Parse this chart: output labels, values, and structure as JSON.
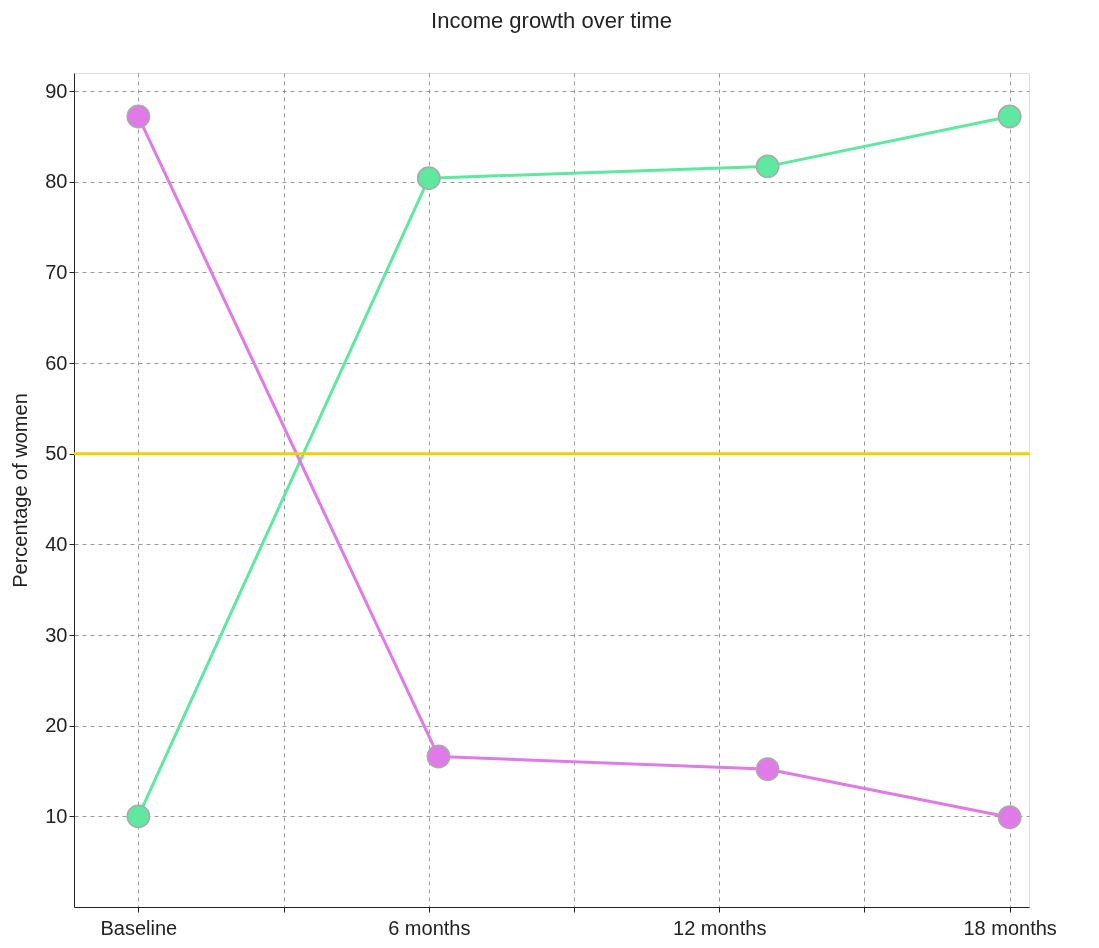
{
  "chart_data": {
    "type": "line",
    "title": "Income growth over time",
    "ylabel": "Percentage of women",
    "xlim": [
      -1.33,
      18.4
    ],
    "ylim": [
      0,
      92
    ],
    "xticks": [
      {
        "value": 0,
        "label": "Baseline"
      },
      {
        "value": 3,
        "label": null
      },
      {
        "value": 6,
        "label": "6 months"
      },
      {
        "value": 9,
        "label": null
      },
      {
        "value": 12,
        "label": "12 months"
      },
      {
        "value": 15,
        "label": null
      },
      {
        "value": 18,
        "label": "18 months"
      }
    ],
    "yticks": [
      10,
      20,
      30,
      40,
      50,
      60,
      70,
      80,
      90
    ],
    "series": [
      {
        "color": "#5ee8a0",
        "x": [
          0,
          6,
          13,
          18
        ],
        "values": [
          10,
          80.4,
          81.7,
          87.2
        ]
      },
      {
        "color": "#e07ae8",
        "x": [
          0,
          6.2,
          13,
          18
        ],
        "values": [
          87.2,
          16.6,
          15.2,
          9.9
        ]
      }
    ],
    "ref_lines": [
      {
        "axis": "y",
        "value": 50,
        "color": "#f0d000"
      }
    ],
    "grid": true,
    "marker": "circle",
    "line_style": "solid"
  }
}
